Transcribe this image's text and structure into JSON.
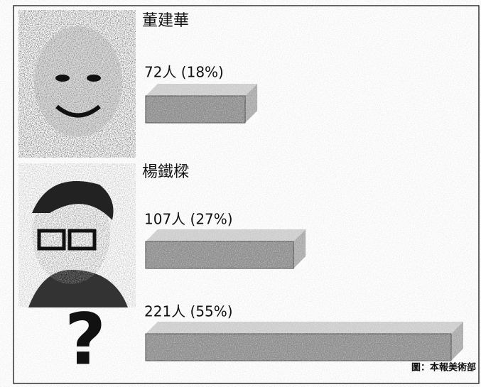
{
  "chart_data": {
    "type": "bar",
    "orientation": "horizontal",
    "categories": [
      "董建華",
      "楊鐵樑",
      "?"
    ],
    "values": [
      72,
      107,
      221
    ],
    "value_labels": [
      "72人 (18%)",
      "107人 (27%)",
      "221人 (55%)"
    ],
    "color": "#8c8c8c",
    "source": "圖：本報美術部"
  }
}
